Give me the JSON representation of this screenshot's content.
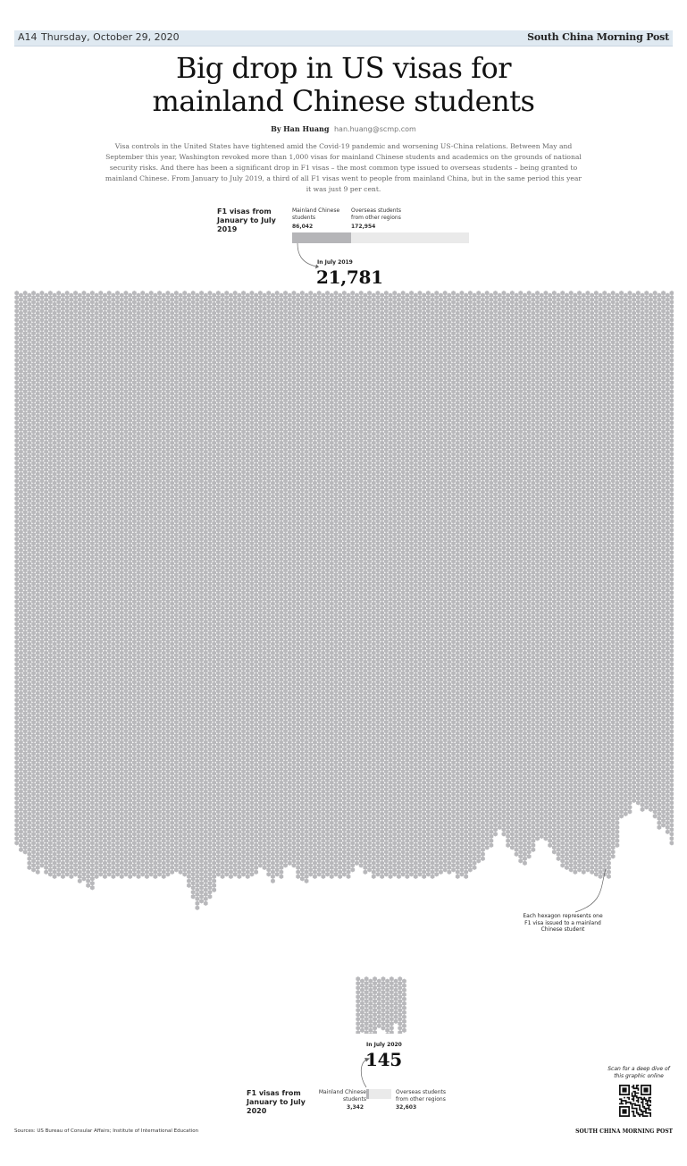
{
  "header": {
    "page_number": "A14",
    "date": "Thursday, October 29, 2020",
    "masthead": "South China Morning Post"
  },
  "article": {
    "headline_line1": "Big drop in US visas for",
    "headline_line2": "mainland Chinese students",
    "byline_prefix": "By",
    "author": "Han Huang",
    "email": "han.huang@scmp.com",
    "intro": "Visa controls in the United States have tightened amid the Covid-19 pandemic and worsening US-China relations. Between May and September this year, Washington revoked more than 1,000 visas for mainland Chinese students and academics on the grounds of national security risks. And there has been a significant drop in F1 visas – the most common type issued to overseas students – being granted to mainland Chinese. From January to July 2019, a third of all F1 visas went to people from mainland China, but in the same period this year it was just 9 per cent."
  },
  "chart_data": [
    {
      "type": "bar",
      "title": "F1 visas from January to July 2019",
      "categories": [
        "Mainland Chinese students",
        "Overseas students from other regions"
      ],
      "values": [
        86042,
        172954
      ],
      "value_labels": [
        "86,042",
        "172,954"
      ],
      "colors": [
        "#b5b5b8",
        "#eaeaea"
      ]
    },
    {
      "type": "bar",
      "title": "F1 visas from January to July 2020",
      "categories": [
        "Mainland Chinese students",
        "Overseas students from other regions"
      ],
      "values": [
        3342,
        32603
      ],
      "value_labels": [
        "3,342",
        "32,603"
      ],
      "colors": [
        "#b5b5b8",
        "#eaeaea"
      ]
    },
    {
      "type": "pictogram",
      "caption": "In July 2019",
      "value": 21781,
      "value_label": "21,781",
      "color": "#b8b8bb"
    },
    {
      "type": "pictogram",
      "caption": "In July 2020",
      "value": 145,
      "value_label": "145",
      "color": "#b8b8bb"
    }
  ],
  "legend": {
    "hexagon_note": "Each hexagon represents one F1 visa issued to a mainland Chinese student"
  },
  "footer": {
    "sources": "Sources: US Bureau of Consular Affairs; Institute of International Education",
    "qr_caption": "Scan for a deep dive of this graphic online",
    "masthead": "SOUTH CHINA MORNING POST"
  }
}
